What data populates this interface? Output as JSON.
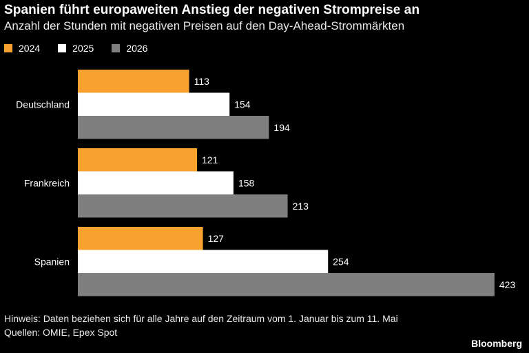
{
  "title": "Spanien führt europaweiten Anstieg der negativen Strompreise an",
  "subtitle": "Anzahl der Stunden mit negativen Preisen auf den Day-Ahead-Strommärkten",
  "note": "Hinweis: Daten beziehen sich für alle Jahre auf den Zeitraum vom 1. Januar bis zum 11. Mai",
  "source": "Quellen: OMIE, Epex Spot",
  "brand": "Bloomberg",
  "chart_data": {
    "type": "bar",
    "orientation": "horizontal",
    "categories": [
      "Deutschland",
      "Frankreich",
      "Spanien"
    ],
    "series": [
      {
        "name": "2024",
        "color": "#f7a12f",
        "values": [
          113,
          121,
          127
        ]
      },
      {
        "name": "2025",
        "color": "#ffffff",
        "values": [
          154,
          158,
          254
        ]
      },
      {
        "name": "2026",
        "color": "#7f7f7f",
        "values": [
          194,
          213,
          423
        ]
      }
    ],
    "legend_position": "top-left",
    "data_labels": true,
    "grid": false
  }
}
